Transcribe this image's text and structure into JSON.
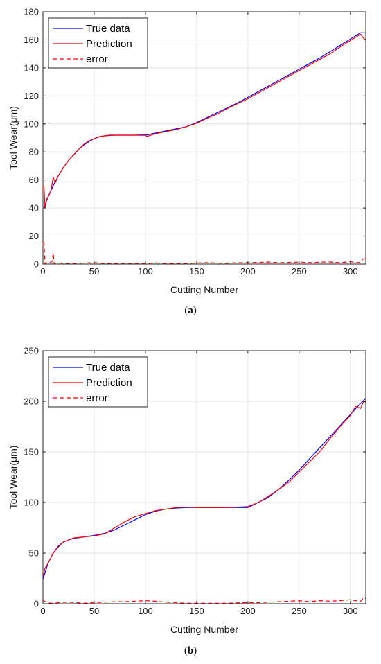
{
  "chart_data": [
    {
      "type": "line",
      "caption_letter": "a",
      "xlabel": "Cutting Number",
      "ylabel": "Tool Wear(μm)",
      "xlim": [
        0,
        315
      ],
      "ylim": [
        0,
        180
      ],
      "xticks": [
        0,
        50,
        100,
        150,
        200,
        250,
        300
      ],
      "yticks": [
        0,
        20,
        40,
        60,
        80,
        100,
        120,
        140,
        160,
        180
      ],
      "grid": true,
      "legend_position": "top-left",
      "series": [
        {
          "name": "True data",
          "color": "#0000ff",
          "style": "solid",
          "x": [
            1,
            5,
            10,
            15,
            20,
            25,
            30,
            35,
            40,
            45,
            50,
            55,
            60,
            65,
            70,
            75,
            80,
            90,
            100,
            110,
            120,
            130,
            140,
            150,
            160,
            170,
            180,
            190,
            200,
            210,
            220,
            230,
            240,
            250,
            260,
            270,
            280,
            290,
            300,
            310,
            315
          ],
          "y": [
            40,
            48,
            56,
            63,
            69,
            74,
            78,
            82,
            85,
            87.5,
            89.5,
            90.8,
            91.5,
            92,
            92,
            92,
            92,
            92,
            92,
            93.5,
            95,
            96.5,
            98,
            101,
            104.5,
            108,
            111.5,
            115,
            119,
            123,
            127,
            131,
            135,
            139,
            143,
            147,
            151.5,
            156,
            160.5,
            165,
            165
          ]
        },
        {
          "name": "Prediction",
          "color": "#ff0000",
          "style": "solid",
          "x": [
            1,
            2,
            4,
            6,
            8,
            10,
            12,
            15,
            20,
            25,
            30,
            35,
            40,
            45,
            50,
            55,
            60,
            70,
            80,
            90,
            100,
            101,
            110,
            120,
            130,
            140,
            150,
            160,
            170,
            180,
            190,
            200,
            210,
            220,
            230,
            240,
            250,
            260,
            270,
            280,
            290,
            300,
            310,
            313,
            315
          ],
          "y": [
            56,
            40,
            47,
            49,
            53,
            62,
            58,
            63,
            69,
            74,
            78,
            82,
            85.5,
            88,
            89.5,
            91,
            91.5,
            92,
            92,
            92,
            92.5,
            91,
            93,
            94.5,
            96,
            98,
            100.5,
            104,
            107,
            111,
            114.5,
            118,
            122,
            126,
            130,
            134,
            138,
            142,
            146,
            150,
            155,
            159.5,
            164,
            161,
            160
          ]
        },
        {
          "name": "error",
          "color": "#ff0000",
          "style": "dashed",
          "x": [
            1,
            2,
            3,
            5,
            7,
            9,
            10,
            11,
            13,
            20,
            30,
            40,
            50,
            60,
            70,
            80,
            90,
            100,
            110,
            120,
            130,
            140,
            150,
            160,
            170,
            180,
            190,
            200,
            210,
            220,
            230,
            240,
            250,
            260,
            270,
            280,
            290,
            300,
            305,
            310,
            312,
            315
          ],
          "y": [
            16,
            0,
            1,
            1,
            1,
            2,
            8,
            0,
            1,
            0.5,
            0.5,
            0.8,
            1,
            0.5,
            0.5,
            0.3,
            0.3,
            0.5,
            0.8,
            0.5,
            0.5,
            0.5,
            0.8,
            1,
            0.8,
            0.6,
            1,
            1,
            1.2,
            1.5,
            1,
            1.2,
            1.5,
            1,
            1.4,
            1.5,
            1,
            1.8,
            1,
            1.2,
            3.5,
            4
          ]
        }
      ]
    },
    {
      "type": "line",
      "caption_letter": "b",
      "xlabel": "Cutting Number",
      "ylabel": "Tool Wear(μm)",
      "xlim": [
        0,
        315
      ],
      "ylim": [
        0,
        250
      ],
      "xticks": [
        0,
        50,
        100,
        150,
        200,
        250,
        300
      ],
      "yticks": [
        0,
        50,
        100,
        150,
        200,
        250
      ],
      "grid": true,
      "legend_position": "top-left",
      "series": [
        {
          "name": "True data",
          "color": "#0000ff",
          "style": "solid",
          "x": [
            0,
            5,
            10,
            15,
            20,
            25,
            30,
            40,
            50,
            60,
            70,
            80,
            90,
            100,
            110,
            120,
            130,
            140,
            150,
            160,
            170,
            180,
            190,
            200,
            210,
            220,
            230,
            240,
            250,
            260,
            270,
            280,
            290,
            300,
            310,
            315
          ],
          "y": [
            24,
            40,
            50,
            57,
            61,
            63,
            64.5,
            66,
            67.5,
            69.5,
            73,
            78,
            83,
            88,
            91.5,
            93.5,
            94.5,
            95,
            95,
            95,
            95,
            95,
            95,
            95,
            100,
            105,
            113,
            122,
            132,
            143,
            154,
            165,
            176,
            187,
            198,
            203
          ]
        },
        {
          "name": "Prediction",
          "color": "#ff0000",
          "style": "solid",
          "x": [
            0,
            2,
            5,
            10,
            15,
            20,
            25,
            30,
            40,
            50,
            60,
            70,
            80,
            90,
            100,
            110,
            120,
            130,
            140,
            150,
            160,
            170,
            180,
            190,
            200,
            210,
            220,
            230,
            240,
            250,
            260,
            270,
            280,
            290,
            300,
            305,
            310,
            313,
            315
          ],
          "y": [
            26,
            35,
            40,
            50,
            56,
            61,
            63,
            65,
            66,
            67,
            69,
            75,
            81,
            86,
            89,
            92,
            93.5,
            95,
            95.5,
            95,
            95,
            95,
            95,
            95.5,
            96,
            100,
            106,
            113,
            120,
            130,
            140,
            150,
            163,
            175,
            186,
            195,
            193,
            200,
            199
          ]
        },
        {
          "name": "error",
          "color": "#ff0000",
          "style": "dashed",
          "x": [
            0,
            2,
            4,
            8,
            15,
            25,
            40,
            50,
            60,
            70,
            80,
            90,
            100,
            110,
            120,
            130,
            140,
            150,
            160,
            170,
            180,
            190,
            200,
            210,
            220,
            230,
            240,
            250,
            260,
            270,
            280,
            290,
            300,
            305,
            310,
            313,
            315
          ],
          "y": [
            4,
            2,
            1,
            0.5,
            1,
            1.5,
            0.5,
            1,
            1.5,
            2,
            2,
            2.5,
            3,
            2.5,
            1.5,
            1,
            0.5,
            0.5,
            0.5,
            0.5,
            0.5,
            0.8,
            1,
            1,
            1.5,
            2,
            2.5,
            3,
            2,
            3,
            2.5,
            3,
            4,
            3,
            2.5,
            6,
            5
          ]
        }
      ]
    }
  ]
}
